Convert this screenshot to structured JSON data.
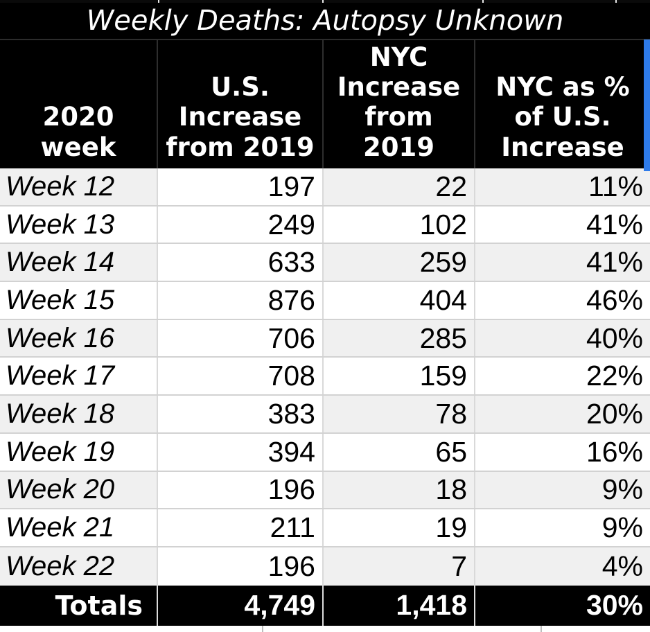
{
  "table": {
    "title": "Weekly Deaths: Autopsy Unknown",
    "columns": [
      {
        "key": "week",
        "header": "2020\nweek"
      },
      {
        "key": "us_increase",
        "header": "U.S.\nIncrease\nfrom 2019"
      },
      {
        "key": "nyc_increase",
        "header": "NYC\nIncrease\nfrom\n2019"
      },
      {
        "key": "nyc_pct",
        "header": "NYC as %\nof U.S.\nIncrease"
      }
    ],
    "rows": [
      {
        "week": "Week 12",
        "us_increase": "197",
        "nyc_increase": "22",
        "nyc_pct": "11%"
      },
      {
        "week": "Week 13",
        "us_increase": "249",
        "nyc_increase": "102",
        "nyc_pct": "41%"
      },
      {
        "week": "Week 14",
        "us_increase": "633",
        "nyc_increase": "259",
        "nyc_pct": "41%"
      },
      {
        "week": "Week 15",
        "us_increase": "876",
        "nyc_increase": "404",
        "nyc_pct": "46%"
      },
      {
        "week": "Week 16",
        "us_increase": "706",
        "nyc_increase": "285",
        "nyc_pct": "40%"
      },
      {
        "week": "Week 17",
        "us_increase": "708",
        "nyc_increase": "159",
        "nyc_pct": "22%"
      },
      {
        "week": "Week 18",
        "us_increase": "383",
        "nyc_increase": "78",
        "nyc_pct": "20%"
      },
      {
        "week": "Week 19",
        "us_increase": "394",
        "nyc_increase": "65",
        "nyc_pct": "16%"
      },
      {
        "week": "Week 20",
        "us_increase": "196",
        "nyc_increase": "18",
        "nyc_pct": "9%"
      },
      {
        "week": "Week 21",
        "us_increase": "211",
        "nyc_increase": "19",
        "nyc_pct": "9%"
      },
      {
        "week": "Week 22",
        "us_increase": "196",
        "nyc_increase": "7",
        "nyc_pct": "4%"
      }
    ],
    "totals": {
      "label": "Totals",
      "us_increase": "4,749",
      "nyc_increase": "1,418",
      "nyc_pct": "30%"
    }
  },
  "colors": {
    "accent_blue": "#2e7bea",
    "stripe_gray": "#f0f0f0",
    "header_black": "#000000"
  },
  "chart_data": {
    "type": "table",
    "title": "Weekly Deaths: Autopsy Unknown",
    "columns": [
      "2020 week",
      "U.S. Increase from 2019",
      "NYC Increase from 2019",
      "NYC as % of U.S. Increase"
    ],
    "rows": [
      [
        "Week 12",
        197,
        22,
        "11%"
      ],
      [
        "Week 13",
        249,
        102,
        "41%"
      ],
      [
        "Week 14",
        633,
        259,
        "41%"
      ],
      [
        "Week 15",
        876,
        404,
        "46%"
      ],
      [
        "Week 16",
        706,
        285,
        "40%"
      ],
      [
        "Week 17",
        708,
        159,
        "22%"
      ],
      [
        "Week 18",
        383,
        78,
        "20%"
      ],
      [
        "Week 19",
        394,
        65,
        "16%"
      ],
      [
        "Week 20",
        196,
        18,
        "9%"
      ],
      [
        "Week 21",
        211,
        19,
        "9%"
      ],
      [
        "Week 22",
        196,
        7,
        "4%"
      ]
    ],
    "totals_row": [
      "Totals",
      4749,
      1418,
      "30%"
    ]
  }
}
